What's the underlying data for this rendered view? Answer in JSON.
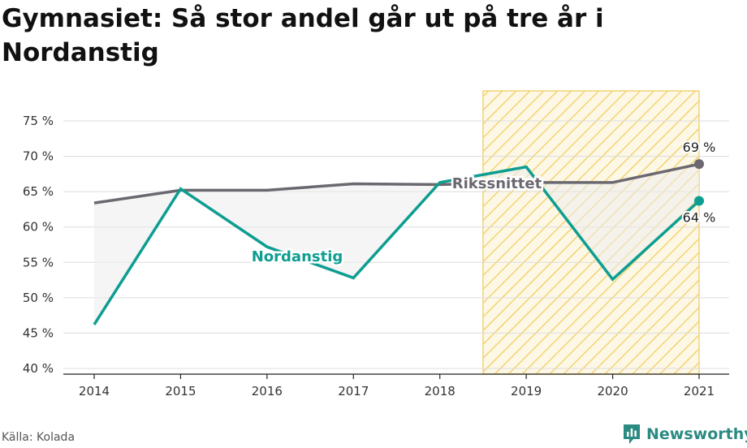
{
  "title": "Gymnasiet: Så stor andel går ut på tre år i Nordanstig",
  "source": "Källa: Kolada",
  "brand": {
    "name": "Newsworthy",
    "icon": "newsworthy-logo-icon"
  },
  "colors": {
    "nordanstig": "#0e9e91",
    "riksnittet": "#6b6870",
    "hatch": "#f3d373",
    "hatch_bg": "#fdf8e6",
    "fill_area": "#ececec",
    "grid": "#dcdcdc",
    "brand": "#2b8a82"
  },
  "chart_data": {
    "type": "line",
    "x": [
      2014,
      2015,
      2016,
      2017,
      2018,
      2019,
      2020,
      2021
    ],
    "y_ticks": [
      "40 %",
      "45 %",
      "50 %",
      "55 %",
      "60 %",
      "65 %",
      "70 %",
      "75 %"
    ],
    "ylim": [
      40,
      78
    ],
    "grid": true,
    "highlight_range": [
      2018.5,
      2021
    ],
    "series": [
      {
        "name": "Nordanstig",
        "values": [
          46.2,
          65.4,
          57.2,
          52.8,
          66.3,
          68.5,
          52.6,
          63.7
        ],
        "end_label": "64 %"
      },
      {
        "name": "Rikssnittet",
        "values": [
          63.4,
          65.2,
          65.2,
          66.1,
          66.0,
          66.3,
          66.3,
          68.9
        ],
        "end_label": "69 %"
      }
    ]
  }
}
